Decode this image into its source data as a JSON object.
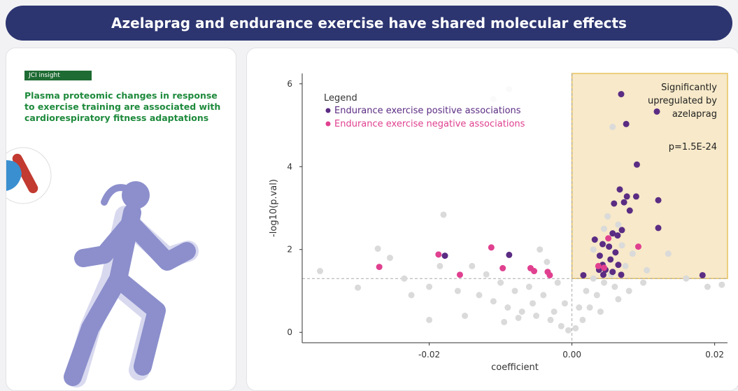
{
  "header": {
    "title": "Azelaprag and endurance exercise have shared molecular effects"
  },
  "left_panel": {
    "badge": "JCI insight",
    "text": "Plasma proteomic changes in response to exercise training are associated with cardiorespiratory fitness adaptations"
  },
  "chart_data": {
    "type": "scatter",
    "xlabel": "coefficient",
    "ylabel": "-log10(p.val)",
    "xlim": [
      -0.0378,
      0.0218
    ],
    "ylim": [
      -0.25,
      6.25
    ],
    "xticks": [
      -0.02,
      {
        "value": 0,
        "label": "0.00"
      },
      0.02
    ],
    "yticks": [
      0,
      2,
      4,
      6
    ],
    "hline": 1.3,
    "vline": 0,
    "legend_title": "Legend",
    "legend": "upper-left",
    "annotation": [
      "Significantly",
      "upregulated by",
      "azelaprag"
    ],
    "pvalue": "p=1.5E-24",
    "series": [
      {
        "color": "#dadada",
        "x": [
          -0.0088,
          -0.011,
          0.0057,
          -0.018,
          -0.0272,
          -0.0353,
          -0.03,
          -0.0235,
          -0.02,
          -0.016,
          -0.013,
          -0.011,
          -0.009,
          -0.007,
          -0.005,
          -0.003,
          -0.0015,
          -0.0005,
          0.0005,
          0.0015,
          0.0025,
          0.0035,
          0.0045,
          0.0055,
          -0.004,
          -0.006,
          -0.008,
          -0.01,
          -0.012,
          -0.014,
          -0.0035,
          -0.0045,
          -0.002,
          -0.001,
          0.001,
          0.002,
          0.003,
          0.0065,
          0.005,
          0.006,
          0.0075,
          0.0085,
          0.0105,
          0.0135,
          0.016,
          0.019,
          0.021,
          -0.0185,
          -0.0225,
          -0.0255,
          -0.0025,
          -0.0055,
          -0.0075,
          -0.0095,
          0.004,
          0.0065,
          0.008,
          0.01,
          -0.015,
          -0.02,
          0.003,
          0.0045,
          0.007
        ],
        "values": [
          5.87,
          5.63,
          4.96,
          2.84,
          2.02,
          1.48,
          1.08,
          1.3,
          1.1,
          1.0,
          0.9,
          0.75,
          0.6,
          0.5,
          0.4,
          0.3,
          0.15,
          0.05,
          0.1,
          0.3,
          0.6,
          0.9,
          1.2,
          1.4,
          0.9,
          1.1,
          1.0,
          1.2,
          1.4,
          1.6,
          1.7,
          2.0,
          1.2,
          0.7,
          0.6,
          1.0,
          1.3,
          2.6,
          2.8,
          1.1,
          1.6,
          1.9,
          1.5,
          1.9,
          1.3,
          1.1,
          1.15,
          1.6,
          0.9,
          1.8,
          0.5,
          0.7,
          0.35,
          0.25,
          0.5,
          0.8,
          1.0,
          1.2,
          0.4,
          0.3,
          2.0,
          2.5,
          2.1
        ]
      },
      {
        "name": "Endurance exercise positive associations",
        "color": "#5b2c83",
        "x": [
          0.0069,
          0.0119,
          0.0076,
          0.0091,
          0.0067,
          0.0077,
          0.009,
          0.0059,
          0.0073,
          0.0121,
          0.0081,
          0.0121,
          0.007,
          0.0057,
          0.0064,
          0.0032,
          0.0043,
          0.0052,
          0.0039,
          0.0061,
          0.0054,
          0.0065,
          0.0043,
          0.0038,
          0.0047,
          0.0057,
          0.0069,
          0.0044,
          0.0016,
          0.0183,
          -0.0178,
          -0.0088
        ],
        "values": [
          5.75,
          5.33,
          5.03,
          4.05,
          3.45,
          3.28,
          3.28,
          3.11,
          3.14,
          3.19,
          2.94,
          2.52,
          2.47,
          2.39,
          2.34,
          2.24,
          2.13,
          2.07,
          1.85,
          1.93,
          1.76,
          1.63,
          1.63,
          1.51,
          1.51,
          1.46,
          1.39,
          1.39,
          1.38,
          1.38,
          1.85,
          1.87
        ]
      },
      {
        "name": "Endurance exercise negative associations",
        "color": "#e0408f",
        "x": [
          -0.027,
          -0.0187,
          -0.0113,
          -0.0097,
          -0.0058,
          -0.0053,
          -0.0034,
          -0.0031,
          -0.0157,
          0.0051,
          0.0093,
          0.0037,
          0.0045
        ],
        "values": [
          1.58,
          1.88,
          2.05,
          1.55,
          1.55,
          1.48,
          1.46,
          1.38,
          1.39,
          2.27,
          2.07,
          1.6,
          1.56
        ]
      }
    ]
  }
}
